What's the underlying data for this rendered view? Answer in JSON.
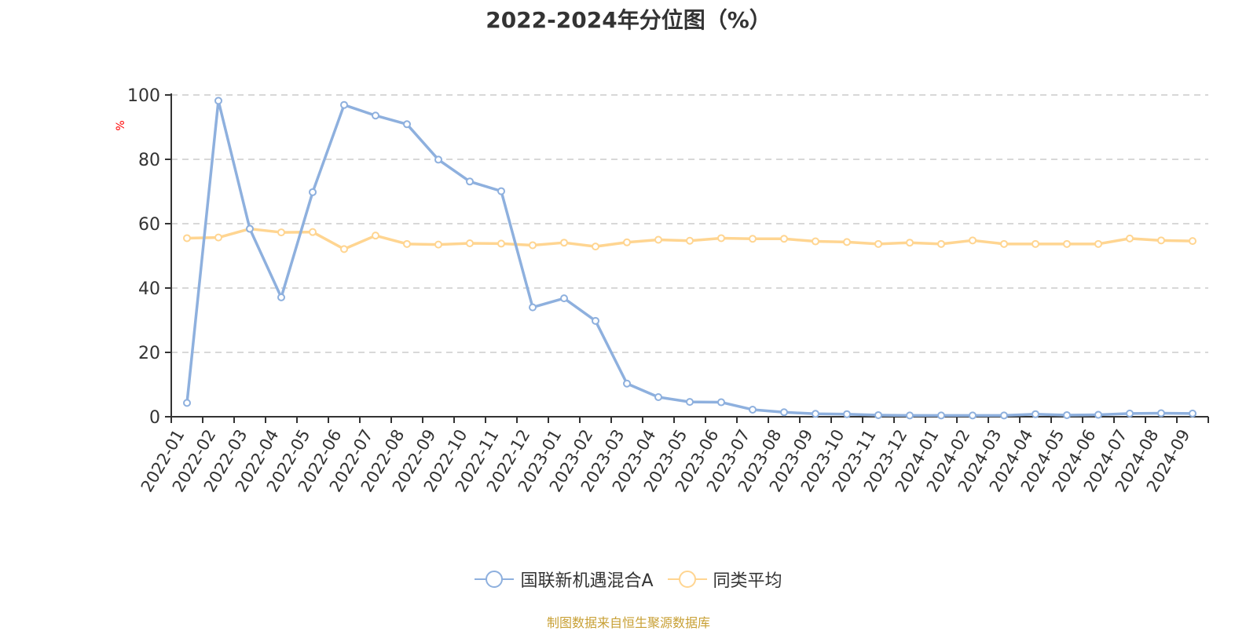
{
  "title": "2022-2024年分位图（%）",
  "footer": "制图数据来自恒生聚源数据库",
  "legend": [
    {
      "label": "国联新机遇混合A",
      "color": "#8eb0de"
    },
    {
      "label": "同类平均",
      "color": "#ffd591"
    }
  ],
  "chart_data": {
    "type": "line",
    "title": "2022-2024年分位图（%）",
    "xlabel": "",
    "ylabel": "%",
    "ylim": [
      0,
      100
    ],
    "yticks": [
      0,
      20,
      40,
      60,
      80,
      100
    ],
    "grid": true,
    "legend_position": "bottom",
    "categories": [
      "2022-01",
      "2022-02",
      "2022-03",
      "2022-04",
      "2022-05",
      "2022-06",
      "2022-07",
      "2022-08",
      "2022-09",
      "2022-10",
      "2022-11",
      "2022-12",
      "2023-01",
      "2023-02",
      "2023-03",
      "2023-04",
      "2023-05",
      "2023-06",
      "2023-07",
      "2023-08",
      "2023-09",
      "2023-10",
      "2023-11",
      "2023-12",
      "2024-01",
      "2024-02",
      "2024-03",
      "2024-04",
      "2024-05",
      "2024-06",
      "2024-07",
      "2024-08",
      "2024-09"
    ],
    "series": [
      {
        "name": "国联新机遇混合A",
        "color": "#8eb0de",
        "values": [
          4.3,
          98.2,
          58.4,
          37.1,
          69.8,
          96.9,
          93.6,
          90.9,
          79.9,
          73.1,
          70.1,
          34.0,
          36.8,
          29.8,
          10.3,
          6.1,
          4.6,
          4.5,
          2.2,
          1.4,
          0.9,
          0.8,
          0.5,
          0.4,
          0.4,
          0.4,
          0.4,
          0.8,
          0.5,
          0.6,
          1.0,
          1.1,
          1.0
        ]
      },
      {
        "name": "同类平均",
        "color": "#ffd591",
        "values": [
          55.5,
          55.7,
          58.4,
          57.3,
          57.4,
          52.1,
          56.3,
          53.7,
          53.5,
          53.9,
          53.8,
          53.3,
          54.1,
          52.9,
          54.2,
          55.0,
          54.7,
          55.5,
          55.3,
          55.3,
          54.5,
          54.3,
          53.7,
          54.1,
          53.7,
          54.8,
          53.7,
          53.7,
          53.7,
          53.7,
          55.4,
          54.8,
          54.6
        ]
      }
    ]
  }
}
